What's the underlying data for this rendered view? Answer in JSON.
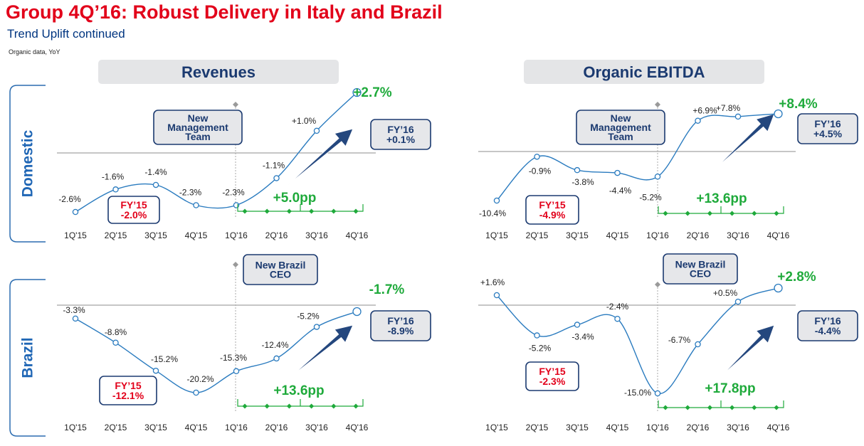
{
  "header": {
    "title": "Group 4Q’16: Robust Delivery in Italy and Brazil",
    "subtitle": "Trend Uplift continued",
    "note": "Organic data, YoY"
  },
  "colors": {
    "title": "#e2001a",
    "subtitle": "#003580",
    "line": "#2a7bbf",
    "green": "#1faa3b",
    "red": "#e2001a",
    "navy": "#1b3a70",
    "header_bg": "#e4e5e7",
    "box_bg": "#e6e7ea"
  },
  "labels": {
    "revenues": "Revenues",
    "ebitda": "Organic EBITDA",
    "domestic": "Domestic",
    "brazil": "Brazil",
    "new_management": [
      "New",
      "Management",
      "Team"
    ],
    "new_brazil_ceo": [
      "New Brazil",
      "CEO"
    ]
  },
  "chart_data": [
    {
      "type": "line",
      "panel": "Revenues",
      "segment": "Domestic",
      "x": [
        "1Q'15",
        "2Q'15",
        "3Q'15",
        "4Q'15",
        "1Q'16",
        "2Q'16",
        "3Q'16",
        "4Q'16"
      ],
      "values": [
        -2.6,
        -1.6,
        -1.4,
        -2.3,
        -2.3,
        -1.1,
        1.0,
        2.7
      ],
      "value_labels": [
        "-2.6%",
        "-1.6%",
        "-1.4%",
        "-2.3%",
        "-2.3%",
        "-1.1%",
        "+1.0%",
        "+2.7%"
      ],
      "fy15": [
        "FY’15",
        "-2.0%"
      ],
      "fy16": [
        "FY’16",
        "+0.1%"
      ],
      "uplift": "+5.0pp"
    },
    {
      "type": "line",
      "panel": "Organic EBITDA",
      "segment": "Domestic",
      "x": [
        "1Q'15",
        "2Q'15",
        "3Q'15",
        "4Q'15",
        "1Q'16",
        "2Q'16",
        "3Q'16",
        "4Q'16"
      ],
      "values": [
        -10.4,
        -0.9,
        -3.8,
        -4.4,
        -5.2,
        6.9,
        7.8,
        8.4
      ],
      "value_labels": [
        "-10.4%",
        "-0.9%",
        "-3.8%",
        "-4.4%",
        "-5.2%",
        "+6.9%",
        "+7.8%",
        "+8.4%"
      ],
      "fy15": [
        "FY’15",
        "-4.9%"
      ],
      "fy16": [
        "FY’16",
        "+4.5%"
      ],
      "uplift": "+13.6pp"
    },
    {
      "type": "line",
      "panel": "Revenues",
      "segment": "Brazil",
      "x": [
        "1Q'15",
        "2Q'15",
        "3Q'15",
        "4Q'15",
        "1Q'16",
        "2Q'16",
        "3Q'16",
        "4Q'16"
      ],
      "values": [
        -3.3,
        -8.8,
        -15.2,
        -20.2,
        -15.3,
        -12.4,
        -5.2,
        -1.7
      ],
      "value_labels": [
        "-3.3%",
        "-8.8%",
        "-15.2%",
        "-20.2%",
        "-15.3%",
        "-12.4%",
        "-5.2%",
        "-1.7%"
      ],
      "fy15": [
        "FY’15",
        "-12.1%"
      ],
      "fy16": [
        "FY’16",
        "-8.9%"
      ],
      "uplift": "+13.6pp"
    },
    {
      "type": "line",
      "panel": "Organic EBITDA",
      "segment": "Brazil",
      "x": [
        "1Q'15",
        "2Q'15",
        "3Q'15",
        "4Q'15",
        "1Q'16",
        "2Q'16",
        "3Q'16",
        "4Q'16"
      ],
      "values": [
        1.6,
        -5.2,
        -3.4,
        -2.4,
        -15.0,
        -6.7,
        0.5,
        2.8
      ],
      "value_labels": [
        "+1.6%",
        "-5.2%",
        "-3.4%",
        "-2.4%",
        "-15.0%",
        "-6.7%",
        "+0.5%",
        "+2.8%"
      ],
      "fy15": [
        "FY’15",
        "-2.3%"
      ],
      "fy16": [
        "FY’16",
        "-4.4%"
      ],
      "uplift": "+17.8pp"
    }
  ]
}
